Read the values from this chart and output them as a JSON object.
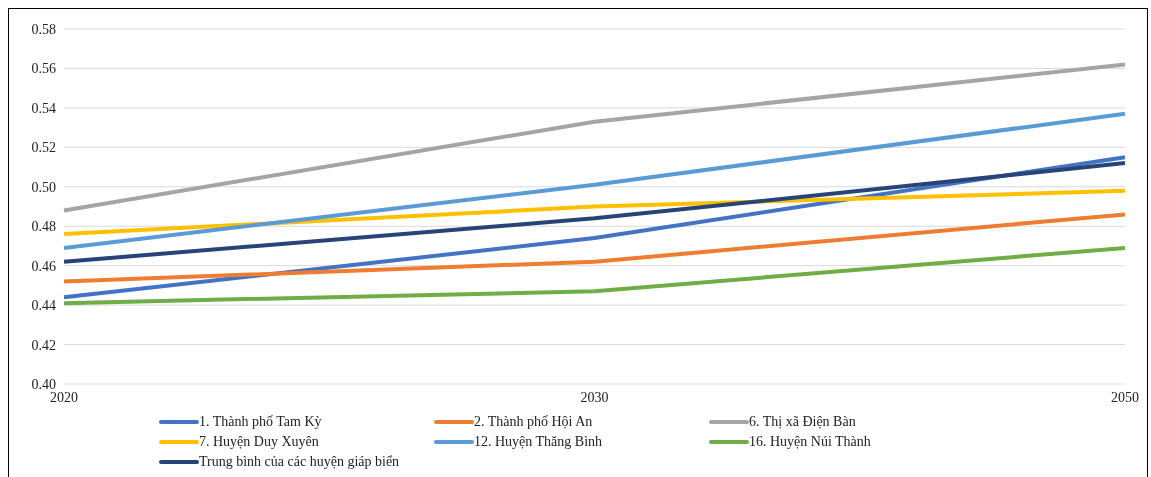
{
  "chart_data": {
    "type": "line",
    "categories": [
      "2020",
      "2030",
      "2050"
    ],
    "series": [
      {
        "name": "1. Thành phố Tam Kỳ",
        "color": "#4472c4",
        "values": [
          0.444,
          0.474,
          0.515
        ]
      },
      {
        "name": "2. Thành phố Hội An",
        "color": "#ed7d31",
        "values": [
          0.452,
          0.462,
          0.486
        ]
      },
      {
        "name": "6. Thị xã Điện Bàn",
        "color": "#a5a5a5",
        "values": [
          0.488,
          0.533,
          0.562
        ]
      },
      {
        "name": "7. Huyện Duy Xuyên",
        "color": "#ffc000",
        "values": [
          0.476,
          0.49,
          0.498
        ]
      },
      {
        "name": "12. Huyện Thăng Bình",
        "color": "#5b9bd5",
        "values": [
          0.469,
          0.501,
          0.537
        ]
      },
      {
        "name": "16. Huyện Núi Thành",
        "color": "#70ad47",
        "values": [
          0.441,
          0.447,
          0.469
        ]
      },
      {
        "name": "Trung bình của các huyện giáp biển",
        "color": "#264478",
        "values": [
          0.462,
          0.484,
          0.512
        ]
      }
    ],
    "ylim": [
      0.4,
      0.58
    ],
    "yticks": [
      {
        "value": 0.4,
        "label": "0.40"
      },
      {
        "value": 0.42,
        "label": "0.42"
      },
      {
        "value": 0.44,
        "label": "0.44"
      },
      {
        "value": 0.46,
        "label": "0.46"
      },
      {
        "value": 0.48,
        "label": "0.48"
      },
      {
        "value": 0.5,
        "label": "0.50"
      },
      {
        "value": 0.52,
        "label": "0.52"
      },
      {
        "value": 0.54,
        "label": "0.54"
      },
      {
        "value": 0.56,
        "label": "0.56"
      },
      {
        "value": 0.58,
        "label": "0.58"
      }
    ],
    "grid": "y",
    "legend": "bottom",
    "marker": "none",
    "line_style": "solid"
  }
}
